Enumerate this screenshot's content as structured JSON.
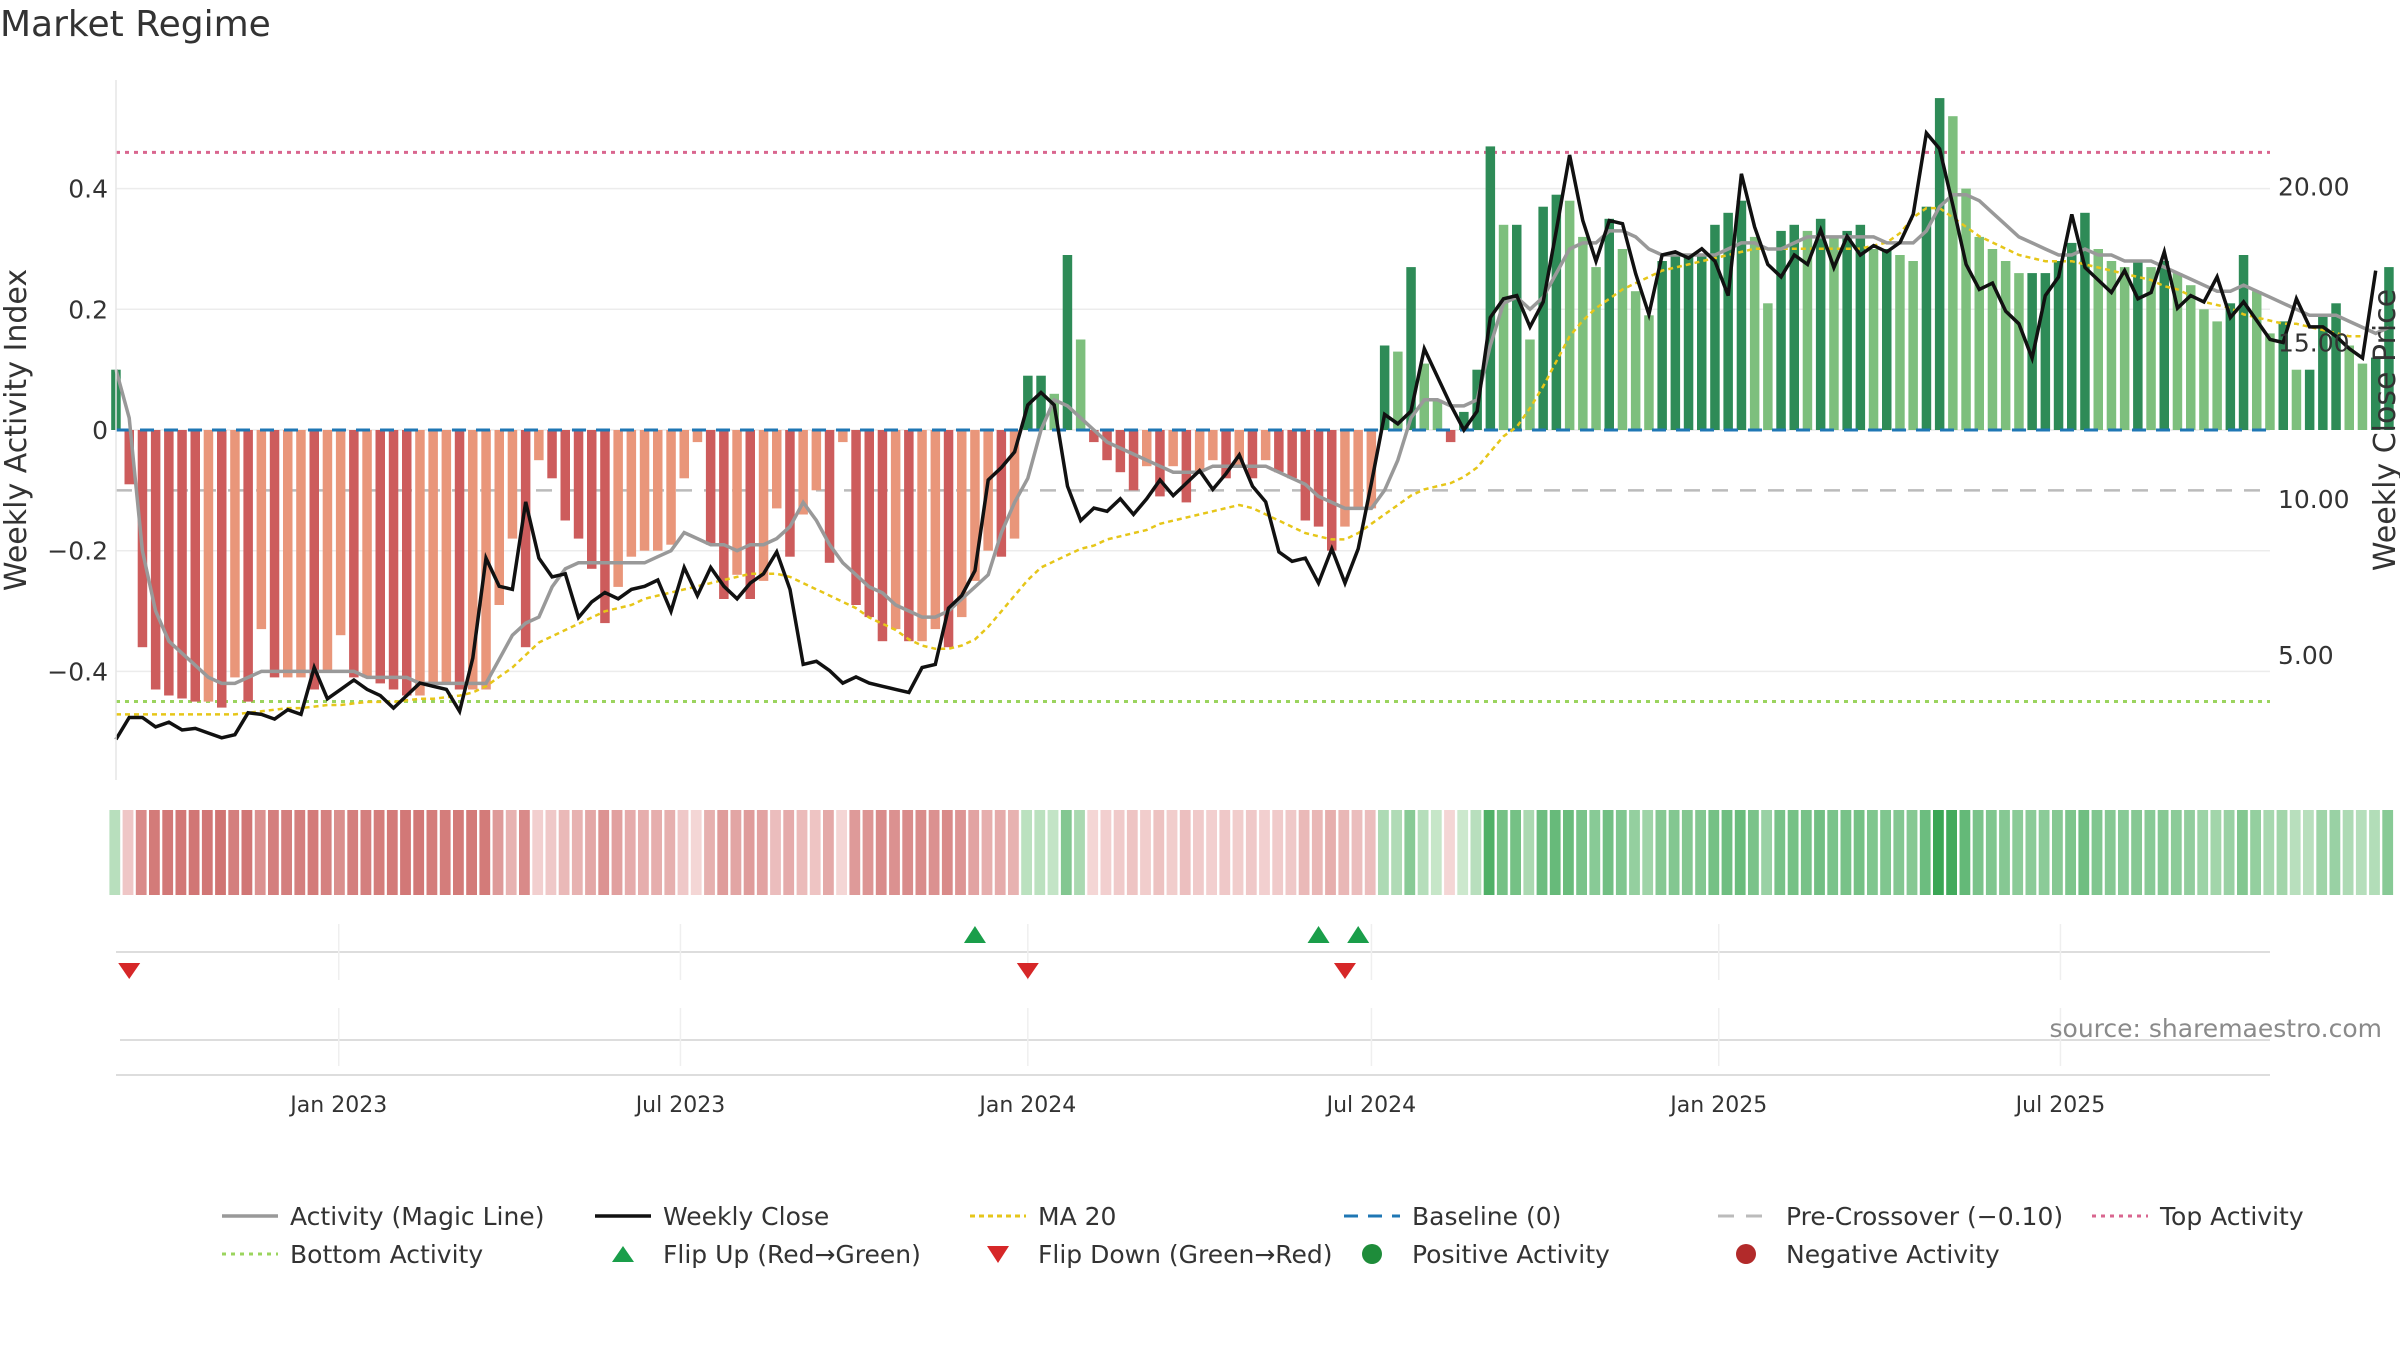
{
  "title": "Market Regime",
  "source": "source: sharemaestro.com",
  "colors": {
    "pos_dark": "#2e8b57",
    "pos_light": "#7dbf7d",
    "neg_dark": "#cd5c5c",
    "neg_light": "#e9967a",
    "magic": "#999999",
    "close": "#111111",
    "ma20": "#e6c619",
    "baseline": "#1f77b4",
    "precross": "#bbbbbb",
    "top": "#d9668f",
    "bottom": "#9bd45e",
    "flip_up": "#1a9e4a",
    "flip_down": "#d62728"
  },
  "chart_data": {
    "type": "bar",
    "title": "Market Regime",
    "ylabel": "Weekly Activity Index",
    "y2label": "Weekly Close Price",
    "ylim": [
      -0.58,
      0.58
    ],
    "y2lim": [
      1.0,
      23.4
    ],
    "yticks": [
      0.4,
      0.2,
      0,
      -0.2,
      -0.4
    ],
    "ytick_labels": [
      "0.4",
      "0.2",
      "0",
      "−0.2",
      "−0.4"
    ],
    "y2ticks": [
      20,
      15,
      10,
      5
    ],
    "y2tick_labels": [
      "20.00",
      "15.00",
      "10.00",
      "5.00"
    ],
    "x_start": "2022-09-05",
    "x_end": "2025-10-20",
    "xticks": [
      "2023-01-01",
      "2023-07-01",
      "2024-01-01",
      "2024-07-01",
      "2025-01-01",
      "2025-07-01"
    ],
    "xtick_labels": [
      "Jan 2023",
      "Jul 2023",
      "Jan 2024",
      "Jul 2024",
      "Jan 2025",
      "Jul 2025"
    ],
    "top_activity": 0.46,
    "bottom_activity": -0.45,
    "pre_crossover": -0.1,
    "activity": [
      0.1,
      -0.09,
      -0.36,
      -0.43,
      -0.44,
      -0.445,
      -0.45,
      -0.45,
      -0.46,
      -0.41,
      -0.45,
      -0.33,
      -0.41,
      -0.41,
      -0.41,
      -0.43,
      -0.4,
      -0.34,
      -0.41,
      -0.41,
      -0.42,
      -0.43,
      -0.44,
      -0.44,
      -0.42,
      -0.42,
      -0.43,
      -0.43,
      -0.43,
      -0.29,
      -0.18,
      -0.36,
      -0.05,
      -0.08,
      -0.15,
      -0.18,
      -0.23,
      -0.32,
      -0.26,
      -0.21,
      -0.2,
      -0.2,
      -0.19,
      -0.08,
      -0.02,
      -0.19,
      -0.28,
      -0.24,
      -0.28,
      -0.25,
      -0.13,
      -0.21,
      -0.14,
      -0.1,
      -0.22,
      -0.02,
      -0.29,
      -0.31,
      -0.35,
      -0.33,
      -0.35,
      -0.35,
      -0.33,
      -0.36,
      -0.31,
      -0.25,
      -0.2,
      -0.21,
      -0.18,
      0.09,
      0.09,
      0.06,
      0.29,
      0.15,
      -0.02,
      -0.05,
      -0.07,
      -0.1,
      -0.06,
      -0.11,
      -0.06,
      -0.12,
      -0.07,
      -0.05,
      -0.08,
      -0.06,
      -0.08,
      -0.05,
      -0.07,
      -0.08,
      -0.15,
      -0.16,
      -0.2,
      -0.16,
      -0.13,
      -0.13,
      0.14,
      0.13,
      0.27,
      0.11,
      0.05,
      -0.02,
      0.03,
      0.1,
      0.47,
      0.34,
      0.34,
      0.15,
      0.37,
      0.39,
      0.38,
      0.32,
      0.27,
      0.35,
      0.3,
      0.23,
      0.19,
      0.28,
      0.29,
      0.29,
      0.29,
      0.34,
      0.36,
      0.38,
      0.32,
      0.21,
      0.33,
      0.34,
      0.33,
      0.35,
      0.32,
      0.33,
      0.34,
      0.3,
      0.3,
      0.29,
      0.28,
      0.37,
      0.55,
      0.52,
      0.4,
      0.32,
      0.3,
      0.28,
      0.26,
      0.26,
      0.26,
      0.28,
      0.31,
      0.36,
      0.3,
      0.28,
      0.27,
      0.28,
      0.27,
      0.28,
      0.26,
      0.24,
      0.2,
      0.18,
      0.21,
      0.29,
      0.23,
      0.16,
      0.18,
      0.1,
      0.1,
      0.19,
      0.21,
      0.14,
      0.11,
      0.12,
      0.27
    ],
    "weekly_close": [
      2.3,
      3.0,
      3.0,
      2.7,
      2.85,
      2.6,
      2.65,
      2.5,
      2.35,
      2.45,
      3.15,
      3.1,
      2.95,
      3.25,
      3.1,
      4.6,
      3.6,
      3.9,
      4.2,
      3.9,
      3.7,
      3.3,
      3.7,
      4.1,
      4.0,
      3.9,
      3.2,
      4.9,
      8.1,
      7.2,
      7.1,
      9.9,
      8.1,
      7.5,
      7.6,
      6.2,
      6.7,
      7.0,
      6.8,
      7.1,
      7.2,
      7.4,
      6.4,
      7.8,
      6.9,
      7.8,
      7.2,
      6.8,
      7.3,
      7.6,
      8.3,
      7.1,
      4.7,
      4.8,
      4.5,
      4.1,
      4.3,
      4.1,
      4.0,
      3.9,
      3.8,
      4.6,
      4.7,
      6.5,
      6.9,
      7.7,
      10.6,
      11.0,
      11.5,
      13.0,
      13.4,
      13.0,
      10.4,
      9.3,
      9.7,
      9.6,
      10.0,
      9.5,
      10.0,
      10.6,
      10.1,
      10.5,
      10.9,
      10.3,
      10.8,
      11.4,
      10.4,
      9.9,
      8.3,
      8.0,
      8.1,
      7.3,
      8.4,
      7.3,
      8.4,
      10.5,
      12.7,
      12.4,
      12.8,
      14.8,
      13.9,
      13.0,
      12.2,
      12.8,
      15.8,
      16.4,
      16.5,
      15.5,
      16.3,
      18.6,
      21.0,
      18.9,
      17.6,
      18.9,
      18.8,
      17.2,
      15.9,
      17.8,
      17.9,
      17.7,
      18.0,
      17.6,
      16.5,
      20.4,
      18.7,
      17.5,
      17.1,
      17.8,
      17.5,
      18.6,
      17.4,
      18.4,
      17.8,
      18.1,
      17.9,
      18.2,
      19.1,
      21.7,
      21.2,
      19.4,
      17.5,
      16.7,
      16.9,
      16.0,
      15.6,
      14.5,
      16.5,
      17.1,
      19.1,
      17.4,
      17.0,
      16.6,
      17.3,
      16.4,
      16.6,
      17.9,
      16.1,
      16.5,
      16.3,
      17.1,
      15.8,
      16.3,
      15.7,
      15.1,
      15.0,
      16.4,
      15.5,
      15.5,
      15.2,
      14.8,
      14.5,
      17.3
    ],
    "magic_line": [
      0.1,
      0.02,
      -0.2,
      -0.3,
      -0.35,
      -0.37,
      -0.39,
      -0.41,
      -0.42,
      -0.42,
      -0.41,
      -0.4,
      -0.4,
      -0.4,
      -0.4,
      -0.4,
      -0.4,
      -0.4,
      -0.4,
      -0.41,
      -0.41,
      -0.41,
      -0.41,
      -0.42,
      -0.42,
      -0.42,
      -0.42,
      -0.42,
      -0.42,
      -0.38,
      -0.34,
      -0.32,
      -0.31,
      -0.26,
      -0.23,
      -0.22,
      -0.22,
      -0.22,
      -0.22,
      -0.22,
      -0.22,
      -0.21,
      -0.2,
      -0.17,
      -0.18,
      -0.19,
      -0.19,
      -0.2,
      -0.19,
      -0.19,
      -0.18,
      -0.16,
      -0.12,
      -0.15,
      -0.19,
      -0.22,
      -0.24,
      -0.26,
      -0.27,
      -0.29,
      -0.3,
      -0.31,
      -0.31,
      -0.3,
      -0.28,
      -0.26,
      -0.24,
      -0.17,
      -0.12,
      -0.08,
      0.0,
      0.05,
      0.04,
      0.02,
      0.0,
      -0.02,
      -0.03,
      -0.04,
      -0.05,
      -0.06,
      -0.07,
      -0.07,
      -0.07,
      -0.06,
      -0.06,
      -0.06,
      -0.06,
      -0.06,
      -0.07,
      -0.08,
      -0.09,
      -0.11,
      -0.12,
      -0.13,
      -0.13,
      -0.13,
      -0.1,
      -0.05,
      0.02,
      0.05,
      0.05,
      0.04,
      0.04,
      0.05,
      0.14,
      0.21,
      0.22,
      0.2,
      0.22,
      0.26,
      0.3,
      0.31,
      0.31,
      0.33,
      0.33,
      0.32,
      0.3,
      0.29,
      0.29,
      0.29,
      0.29,
      0.29,
      0.3,
      0.31,
      0.31,
      0.3,
      0.3,
      0.31,
      0.32,
      0.32,
      0.32,
      0.32,
      0.32,
      0.32,
      0.31,
      0.31,
      0.31,
      0.33,
      0.37,
      0.39,
      0.39,
      0.38,
      0.36,
      0.34,
      0.32,
      0.31,
      0.3,
      0.29,
      0.29,
      0.3,
      0.29,
      0.29,
      0.28,
      0.28,
      0.28,
      0.27,
      0.26,
      0.25,
      0.24,
      0.23,
      0.23,
      0.24,
      0.23,
      0.22,
      0.21,
      0.2,
      0.19,
      0.19,
      0.19,
      0.18,
      0.17,
      0.16,
      0.17
    ],
    "ma20": [
      3.1,
      3.1,
      3.1,
      3.1,
      3.1,
      3.1,
      3.1,
      3.1,
      3.1,
      3.1,
      3.15,
      3.2,
      3.25,
      3.3,
      3.3,
      3.35,
      3.4,
      3.4,
      3.45,
      3.5,
      3.5,
      3.5,
      3.55,
      3.6,
      3.6,
      3.65,
      3.7,
      3.8,
      4.0,
      4.3,
      4.6,
      5.0,
      5.4,
      5.6,
      5.8,
      6.0,
      6.2,
      6.4,
      6.5,
      6.6,
      6.8,
      6.9,
      7.0,
      7.1,
      7.2,
      7.3,
      7.4,
      7.5,
      7.6,
      7.6,
      7.6,
      7.5,
      7.3,
      7.1,
      6.9,
      6.7,
      6.5,
      6.2,
      6.0,
      5.8,
      5.5,
      5.3,
      5.2,
      5.2,
      5.3,
      5.5,
      5.9,
      6.4,
      6.9,
      7.4,
      7.8,
      8.0,
      8.2,
      8.4,
      8.5,
      8.7,
      8.8,
      8.9,
      9.0,
      9.2,
      9.3,
      9.4,
      9.5,
      9.6,
      9.7,
      9.8,
      9.7,
      9.5,
      9.3,
      9.1,
      8.9,
      8.8,
      8.7,
      8.7,
      8.9,
      9.2,
      9.5,
      9.8,
      10.1,
      10.3,
      10.4,
      10.5,
      10.7,
      11.0,
      11.5,
      12.0,
      12.3,
      12.9,
      13.6,
      14.4,
      15.2,
      15.7,
      16.1,
      16.4,
      16.7,
      16.9,
      17.1,
      17.3,
      17.4,
      17.5,
      17.6,
      17.7,
      17.8,
      17.9,
      18.0,
      18.0,
      18.0,
      18.0,
      18.0,
      18.0,
      18.0,
      18.0,
      18.0,
      18.1,
      18.2,
      18.5,
      19.0,
      19.3,
      19.3,
      19.0,
      18.7,
      18.4,
      18.2,
      18.0,
      17.8,
      17.7,
      17.6,
      17.6,
      17.6,
      17.5,
      17.4,
      17.3,
      17.2,
      17.1,
      17.0,
      16.8,
      16.7,
      16.5,
      16.3,
      16.2,
      16.1,
      15.9,
      15.8,
      15.7,
      15.6,
      15.6,
      15.5,
      15.4,
      15.3,
      15.2,
      15.2
    ],
    "flip_up": [
      "2023-12-04",
      "2024-06-03",
      "2024-06-24"
    ],
    "flip_down": [
      "2022-09-12",
      "2024-01-01",
      "2024-06-17"
    ],
    "series": [
      {
        "name": "Activity (Magic Line)"
      },
      {
        "name": "Weekly Close"
      },
      {
        "name": "MA 20"
      },
      {
        "name": "Baseline (0)"
      },
      {
        "name": "Pre-Crossover (−0.10)"
      },
      {
        "name": "Top Activity"
      },
      {
        "name": "Bottom Activity"
      },
      {
        "name": "Flip Up (Red→Green)"
      },
      {
        "name": "Flip Down (Green→Red)"
      },
      {
        "name": "Positive Activity"
      },
      {
        "name": "Negative Activity"
      }
    ]
  }
}
